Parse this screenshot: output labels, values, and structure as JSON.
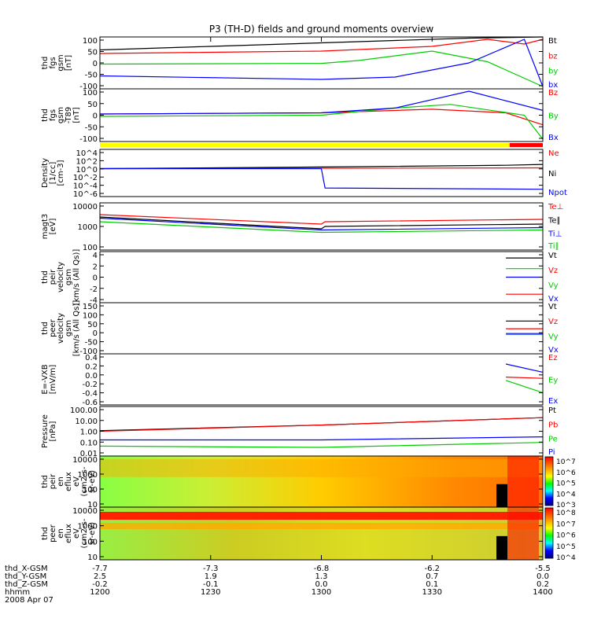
{
  "chart_data": {
    "type": "line",
    "title": "P3 (TH-D) fields and ground moments overview",
    "panels": [
      {
        "id": "fgs",
        "ylabel": [
          "thd",
          "fgs",
          "gsm",
          "[nT]"
        ],
        "yticks": [
          "100",
          "50",
          "0",
          "-50",
          "-100"
        ],
        "ylim": [
          -110,
          110
        ],
        "series": [
          {
            "name": "Bt",
            "color": "#000000",
            "x": [
              1200,
              1230,
              1300,
              1320,
              1340,
              1400
            ],
            "y": [
              55,
              70,
              85,
              95,
              105,
              110
            ]
          },
          {
            "name": "bz",
            "color": "#ff0000",
            "x": [
              1200,
              1300,
              1330,
              1345,
              1355,
              1400
            ],
            "y": [
              40,
              50,
              70,
              100,
              80,
              100
            ]
          },
          {
            "name": "by",
            "color": "#00cc00",
            "x": [
              1200,
              1300,
              1310,
              1330,
              1345,
              1400
            ],
            "y": [
              -5,
              -2,
              10,
              50,
              5,
              -100
            ]
          },
          {
            "name": "bx",
            "color": "#0000ff",
            "x": [
              1200,
              1300,
              1320,
              1340,
              1355,
              1400
            ],
            "y": [
              -55,
              -70,
              -60,
              0,
              100,
              -100
            ]
          }
        ]
      },
      {
        "id": "fgs-t89",
        "ylabel": [
          "thd",
          "fgs",
          "gsm",
          "-T89",
          "[nT]"
        ],
        "yticks": [
          "100",
          "50",
          "0",
          "-50",
          "-100"
        ],
        "ylim": [
          -110,
          110
        ],
        "series": [
          {
            "name": "Bz",
            "color": "#ff0000",
            "x": [
              1200,
              1300,
              1330,
              1350,
              1400
            ],
            "y": [
              5,
              10,
              25,
              10,
              -40
            ]
          },
          {
            "name": "By",
            "color": "#00cc00",
            "x": [
              1200,
              1300,
              1320,
              1335,
              1355,
              1400
            ],
            "y": [
              -5,
              0,
              30,
              45,
              0,
              -100
            ]
          },
          {
            "name": "Bx",
            "color": "#0000ff",
            "x": [
              1200,
              1300,
              1320,
              1340,
              1360,
              1400
            ],
            "y": [
              5,
              10,
              30,
              100,
              20,
              -100
            ]
          }
        ]
      },
      {
        "id": "density",
        "ylabel": [
          "Density",
          "[1/cc]",
          "[cm-3]"
        ],
        "yticks": [
          "10^4",
          "10^2",
          "10^0",
          "10^-2",
          "10^-4",
          "10^-6"
        ],
        "ylim": [
          -6.5,
          4.5
        ],
        "log": true,
        "series": [
          {
            "name": "Ne",
            "color": "#ff0000",
            "x": [
              1200,
              1300,
              1400
            ],
            "y": [
              0.0,
              0.1,
              0.2
            ]
          },
          {
            "name": "Ni",
            "color": "#000000",
            "x": [
              1200,
              1300,
              1350,
              1400
            ],
            "y": [
              0.0,
              0.4,
              0.8,
              1.0
            ]
          },
          {
            "name": "Npot",
            "color": "#0000ff",
            "x": [
              1200,
              1300,
              1301,
              1400
            ],
            "y": [
              0.0,
              0.0,
              -4.5,
              -4.8
            ]
          }
        ]
      },
      {
        "id": "magt3",
        "ylabel": [
          "magt3",
          "[eV]"
        ],
        "yticks": [
          "10000",
          "1000",
          "100"
        ],
        "ylim": [
          2,
          4
        ],
        "log": true,
        "series": [
          {
            "name": "Te⊥",
            "color": "#ff0000",
            "x": [
              1200,
              1300,
              1301,
              1400
            ],
            "y": [
              3.5,
              3.1,
              3.2,
              3.3
            ]
          },
          {
            "name": "Te∥",
            "color": "#000000",
            "x": [
              1200,
              1300,
              1301,
              1400
            ],
            "y": [
              3.4,
              2.9,
              3.0,
              3.1
            ]
          },
          {
            "name": "Ti⊥",
            "color": "#0000ff",
            "x": [
              1200,
              1300,
              1400
            ],
            "y": [
              3.35,
              2.85,
              2.95
            ]
          },
          {
            "name": "Ti∥",
            "color": "#00cc00",
            "x": [
              1200,
              1300,
              1400
            ],
            "y": [
              3.2,
              2.75,
              2.85
            ]
          }
        ]
      },
      {
        "id": "peir-velocity",
        "ylabel": [
          "thd",
          "peir",
          "velocity",
          "gsm",
          "[km/s (All Qs)]"
        ],
        "yticks": [
          "4",
          "2",
          "0",
          "-2",
          "-4"
        ],
        "ylim": [
          -6,
          6
        ],
        "series": [
          {
            "name": "Vt",
            "color": "#000000",
            "x": [
              1350,
              1400
            ],
            "y": [
              4.5,
              4.5
            ]
          },
          {
            "name": "Vz",
            "color": "#ff0000",
            "x": [
              1350,
              1400
            ],
            "y": [
              -4,
              -4
            ]
          },
          {
            "name": "Vy",
            "color": "#00cc00",
            "x": [
              1350,
              1400
            ],
            "y": [
              2,
              2
            ]
          },
          {
            "name": "Vx",
            "color": "#0000ff",
            "x": [
              1350,
              1400
            ],
            "y": [
              0,
              0
            ]
          }
        ]
      },
      {
        "id": "peer-velocity",
        "ylabel": [
          "thd",
          "peer",
          "velocity",
          "gsm",
          "[km/s (All Qs)]"
        ],
        "yticks": [
          "150",
          "100",
          "50",
          "0",
          "-50",
          "-100"
        ],
        "ylim": [
          -110,
          155
        ],
        "series": [
          {
            "name": "Vt",
            "color": "#000000",
            "x": [
              1350,
              1400
            ],
            "y": [
              60,
              60
            ]
          },
          {
            "name": "Vz",
            "color": "#ff0000",
            "x": [
              1350,
              1400
            ],
            "y": [
              20,
              20
            ]
          },
          {
            "name": "Vy",
            "color": "#00cc00",
            "x": [
              1350,
              1400
            ],
            "y": [
              -10,
              -10
            ]
          },
          {
            "name": "Vx",
            "color": "#0000ff",
            "x": [
              1350,
              1400
            ],
            "y": [
              -5,
              -5
            ]
          }
        ]
      },
      {
        "id": "vxb",
        "ylabel": [
          "E=-VXB",
          "[mV/m]"
        ],
        "yticks": [
          "0.4",
          "0.2",
          "0.0",
          "-0.2",
          "-0.4",
          "-0.6"
        ],
        "ylim": [
          -0.7,
          0.55
        ],
        "series": [
          {
            "name": "Ez",
            "color": "#ff0000",
            "x": [
              1350,
              1400
            ],
            "y": [
              -0.02,
              -0.05
            ]
          },
          {
            "name": "Ey",
            "color": "#00cc00",
            "x": [
              1350,
              1400
            ],
            "y": [
              -0.1,
              -0.4
            ]
          },
          {
            "name": "Ex",
            "color": "#0000ff",
            "x": [
              1350,
              1400
            ],
            "y": [
              0.3,
              0.1
            ]
          }
        ]
      },
      {
        "id": "pressure",
        "ylabel": [
          "Pressure",
          "[nPa]"
        ],
        "yticks": [
          "100.00",
          "10.00",
          "1.00",
          "0.10",
          "0.01"
        ],
        "ylim": [
          -2,
          2
        ],
        "log": true,
        "series": [
          {
            "name": "Pt",
            "color": "#000000",
            "x": [
              1200,
              1300,
              1400
            ],
            "y": [
              0.05,
              0.5,
              1.1
            ]
          },
          {
            "name": "Pb",
            "color": "#ff0000",
            "x": [
              1200,
              1300,
              1400
            ],
            "y": [
              0.0,
              0.5,
              1.1
            ]
          },
          {
            "name": "Pe",
            "color": "#00cc00",
            "x": [
              1200,
              1300,
              1400
            ],
            "y": [
              -1.2,
              -1.3,
              -0.9
            ]
          },
          {
            "name": "Pi",
            "color": "#0000ff",
            "x": [
              1200,
              1300,
              1400
            ],
            "y": [
              -0.7,
              -0.7,
              -0.45
            ]
          }
        ]
      },
      {
        "id": "peir-spectrogram",
        "type": "heatmap",
        "ylabel": [
          "thd",
          "peir",
          "en",
          "eflux",
          "eV",
          "(cm2-s-",
          "sr-eV)"
        ],
        "yticks": [
          "10000",
          "1000",
          "100",
          "10"
        ],
        "colorbar": [
          "10^7",
          "10^6",
          "10^5",
          "10^4",
          "10^3"
        ]
      },
      {
        "id": "peer-spectrogram",
        "type": "heatmap",
        "ylabel": [
          "thd",
          "peer",
          "en",
          "eflux",
          "eV",
          "(cm2-s-",
          "sr-eV)"
        ],
        "yticks": [
          "10000",
          "1000",
          "100",
          "10"
        ],
        "colorbar": [
          "10^8",
          "10^7",
          "10^6",
          "10^5",
          "10^4"
        ]
      }
    ],
    "xaxis": {
      "rows": [
        {
          "label": "thd_X-GSM",
          "values": [
            "-7.7",
            "-7.3",
            "-6.8",
            "-6.2",
            "-5.5"
          ]
        },
        {
          "label": "thd_Y-GSM",
          "values": [
            "2.5",
            "1.9",
            "1.3",
            "0.7",
            "0.0"
          ]
        },
        {
          "label": "thd_Z-GSM",
          "values": [
            "-0.2",
            "-0.1",
            "0.0",
            "0.1",
            "0.2"
          ]
        },
        {
          "label": "hhmm",
          "values": [
            "1200",
            "1230",
            "1300",
            "1330",
            "1400"
          ]
        }
      ],
      "date": "2008 Apr 07",
      "x_values": [
        1200,
        1230,
        1300,
        1330,
        1400
      ]
    },
    "mode_bar": [
      {
        "color": "#ffff00",
        "x": [
          1200,
          1351
        ]
      },
      {
        "color": "#ff0000",
        "x": [
          1351,
          1400
        ]
      }
    ]
  }
}
